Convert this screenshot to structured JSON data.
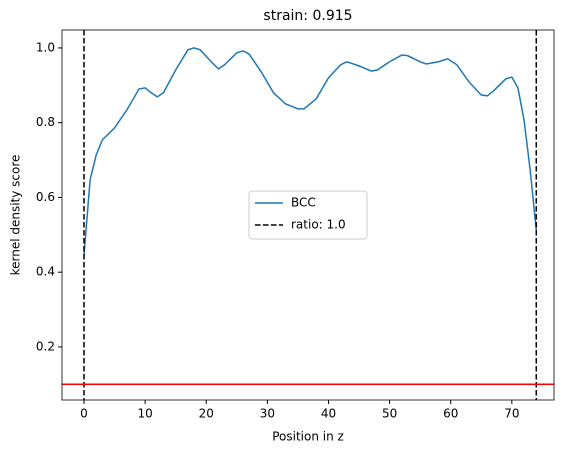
{
  "chart_data": {
    "type": "line",
    "title": "strain: 0.915",
    "xlabel": "Position in z",
    "ylabel": "kernel density score",
    "x": [
      0,
      1,
      2,
      3,
      5,
      7,
      9,
      10,
      11,
      12,
      13,
      15,
      17,
      18,
      19,
      21,
      22,
      23,
      25,
      26,
      27,
      29,
      31,
      33,
      35,
      36,
      38,
      40,
      42,
      43,
      45,
      47,
      48,
      50,
      52,
      53,
      55,
      56,
      58,
      59.5,
      61,
      63,
      65,
      66,
      67,
      69,
      70,
      71,
      72,
      73,
      74
    ],
    "series": [
      {
        "name": "BCC",
        "color": "#1f77b4",
        "values": [
          0.446,
          0.647,
          0.714,
          0.754,
          0.786,
          0.834,
          0.89,
          0.893,
          0.88,
          0.869,
          0.88,
          0.941,
          0.995,
          1.0,
          0.995,
          0.96,
          0.944,
          0.955,
          0.987,
          0.992,
          0.984,
          0.936,
          0.88,
          0.85,
          0.837,
          0.837,
          0.864,
          0.92,
          0.955,
          0.963,
          0.952,
          0.938,
          0.941,
          0.963,
          0.981,
          0.979,
          0.963,
          0.957,
          0.963,
          0.971,
          0.955,
          0.909,
          0.874,
          0.872,
          0.885,
          0.917,
          0.922,
          0.893,
          0.807,
          0.674,
          0.513
        ]
      }
    ],
    "vlines": {
      "name": "ratio: 1.0",
      "color": "#000000",
      "values": [
        0,
        74
      ]
    },
    "hline": {
      "value": 0.1,
      "color": "#ff0000"
    },
    "xlim": [
      -3.6,
      76.9
    ],
    "ylim": [
      0.058,
      1.048
    ],
    "xticks": [
      0,
      10,
      20,
      30,
      40,
      50,
      60,
      70
    ],
    "yticks": [
      0.2,
      0.4,
      0.6,
      0.8,
      {
        "value": 1,
        "label": "1.0"
      }
    ],
    "legend": "center"
  }
}
